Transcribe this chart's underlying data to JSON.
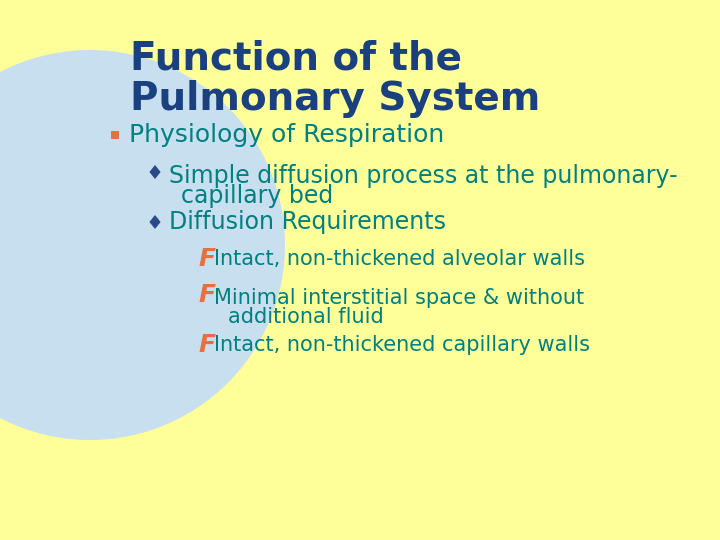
{
  "background_color": "#ffff99",
  "circle_color": "#c8dff0",
  "title_line1": "Function of the",
  "title_line2": "Pulmonary System",
  "title_color": "#1a4080",
  "title_fontsize": 28,
  "bullet1_text": "Physiology of Respiration",
  "bullet1_color": "#008080",
  "bullet1_marker_color": "#e87040",
  "bullet1_fontsize": 18,
  "sub_bullet_color": "#008080",
  "sub_bullet_marker_color": "#2a4a8a",
  "sub_bullet1_line1": "Simple diffusion process at the pulmonary-",
  "sub_bullet1_line2": "capillary bed",
  "sub_bullet2_text": "Diffusion Requirements",
  "sub_bullet_fontsize": 17,
  "sub_sub_bullet_color": "#008080",
  "sub_sub_bullet_marker_color": "#e87040",
  "sub_sub_bullet1_text": "Intact, non-thickened alveolar walls",
  "sub_sub_bullet2_line1": "Minimal interstitial space & without",
  "sub_sub_bullet2_line2": "additional fluid",
  "sub_sub_bullet3_text": "Intact, non-thickened capillary walls",
  "sub_sub_bullet_fontsize": 15
}
